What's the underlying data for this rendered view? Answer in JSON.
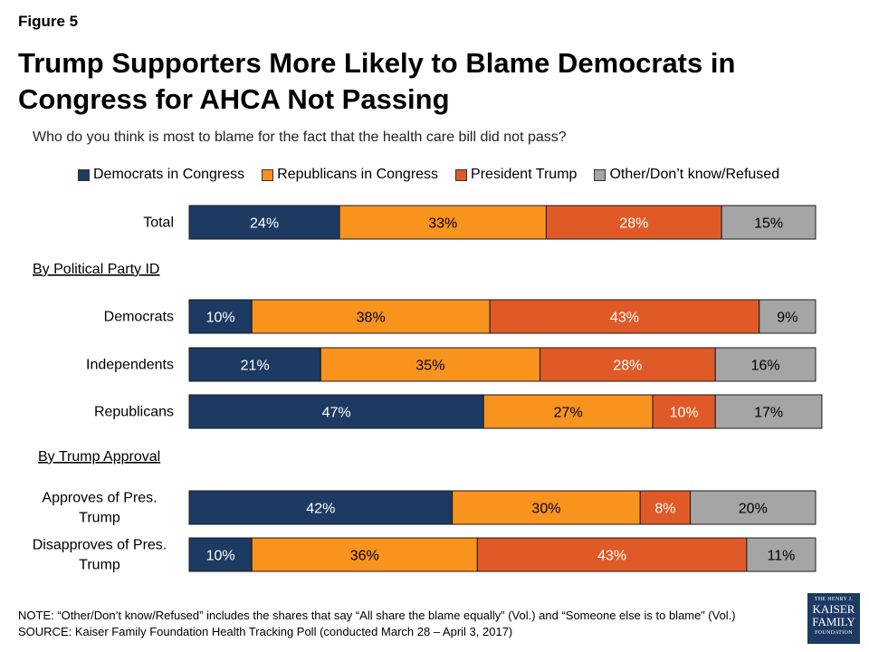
{
  "figure_label": "Figure 5",
  "logo": {
    "line1": "THE HENRY J.",
    "line2": "KAISER",
    "line3": "FAMILY",
    "line4": "FOUNDATION"
  },
  "note": "NOTE: “Other/Don’t know/Refused” includes the shares that say “All share the blame equally” (Vol.) and “Someone else is to blame” (Vol.)",
  "source": "SOURCE: Kaiser Family Foundation Health Tracking Poll (conducted March 28 – April 3, 2017)",
  "chart_data": {
    "type": "bar",
    "orientation": "horizontal",
    "stacked": true,
    "title": "Trump Supporters More Likely to Blame Democrats in Congress for AHCA Not Passing",
    "subtitle": "Who do you think is most to blame for the fact that the health care bill did not pass?",
    "legend_position": "top",
    "grid": false,
    "xlim": [
      0,
      100
    ],
    "series": [
      {
        "name": "Democrats in Congress",
        "color": "#1d3a63",
        "label_color": "#ffffff"
      },
      {
        "name": "Republicans in Congress",
        "color": "#f8931e",
        "label_color": "#000000"
      },
      {
        "name": "President Trump",
        "color": "#e05a27",
        "label_color": "#ffffff"
      },
      {
        "name": "Other/Don’t know/Refused",
        "color": "#a5a5a5",
        "label_color": "#000000"
      }
    ],
    "groups": [
      {
        "heading": "",
        "rows": [
          {
            "label": [
              "Total"
            ],
            "values": [
              24,
              33,
              28,
              15
            ]
          }
        ]
      },
      {
        "heading": "By Political Party ID",
        "rows": [
          {
            "label": [
              "Democrats"
            ],
            "values": [
              10,
              38,
              43,
              9
            ]
          },
          {
            "label": [
              "Independents"
            ],
            "values": [
              21,
              35,
              28,
              16
            ]
          },
          {
            "label": [
              "Republicans"
            ],
            "values": [
              47,
              27,
              10,
              17
            ]
          }
        ]
      },
      {
        "heading": "By Trump Approval",
        "rows": [
          {
            "label": [
              "Approves of Pres.",
              "Trump"
            ],
            "values": [
              42,
              30,
              8,
              20
            ]
          },
          {
            "label": [
              "Disapproves of Pres.",
              "Trump"
            ],
            "values": [
              10,
              36,
              43,
              11
            ]
          }
        ]
      }
    ]
  }
}
